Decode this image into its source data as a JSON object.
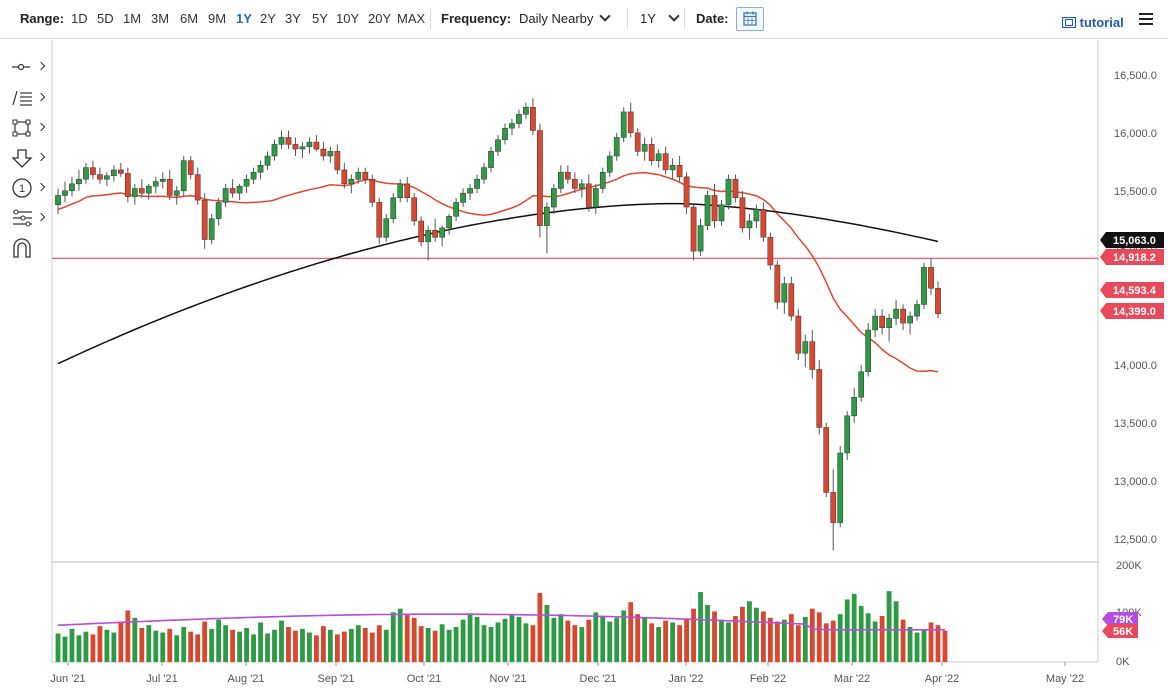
{
  "toolbar": {
    "range_label": "Range:",
    "ranges": [
      "1D",
      "5D",
      "1M",
      "3M",
      "6M",
      "9M",
      "1Y",
      "2Y",
      "3Y",
      "5Y",
      "10Y",
      "20Y",
      "MAX"
    ],
    "active_range": "1Y",
    "frequency_label": "Frequency:",
    "frequency_value": "Daily Nearby",
    "period_value": "1Y",
    "date_label": "Date:",
    "tutorial_label": "tutorial",
    "accent_color": "#1f6fb5"
  },
  "drawing_tools": [
    "crosshair-tool-icon",
    "trend-lines-icon",
    "shapes-icon",
    "arrow-icon",
    "annotation-icon",
    "fibonacci-icon",
    "magnet-icon"
  ],
  "annotation_number": "1",
  "chart_data": {
    "type": "candlestick",
    "x_tick_labels": [
      "Jun '21",
      "Jul '21",
      "Aug '21",
      "Sep '21",
      "Oct '21",
      "Nov '21",
      "Dec '21",
      "Jan '22",
      "Feb '22",
      "Mar '22",
      "Apr '22",
      "May '22"
    ],
    "y_tick_labels": [
      "16,500.0",
      "16,000.0",
      "15,500.0",
      "15,000.0",
      "14,500.0",
      "14,000.0",
      "13,500.0",
      "13,000.0",
      "12,500.0"
    ],
    "y_range": [
      12300,
      16800
    ],
    "horizontal_line": {
      "value": 14918.2,
      "label": "14,918.2",
      "color": "#e8495b"
    },
    "price_tags": [
      {
        "label": "15,063.0",
        "value": 15063.0,
        "color": "#111111"
      },
      {
        "label": "14,918.2",
        "value": 14918.2,
        "color": "#e8495b"
      },
      {
        "label": "14,593.4",
        "value": 14593.4,
        "color": "#e8495b"
      },
      {
        "label": "14,399.0",
        "value": 14399.0,
        "color": "#e8495b"
      }
    ],
    "ma_50_color": "#e8442c",
    "ma_200_color": "#111111",
    "up_color": "#2e9a44",
    "down_color": "#d9472f",
    "candles": [
      [
        15380,
        15520,
        15300,
        15460
      ],
      [
        15460,
        15580,
        15400,
        15500
      ],
      [
        15500,
        15620,
        15450,
        15560
      ],
      [
        15560,
        15680,
        15500,
        15600
      ],
      [
        15600,
        15740,
        15560,
        15700
      ],
      [
        15700,
        15760,
        15600,
        15640
      ],
      [
        15640,
        15700,
        15560,
        15600
      ],
      [
        15600,
        15660,
        15540,
        15630
      ],
      [
        15630,
        15720,
        15580,
        15680
      ],
      [
        15680,
        15740,
        15620,
        15650
      ],
      [
        15650,
        15700,
        15400,
        15450
      ],
      [
        15450,
        15560,
        15380,
        15520
      ],
      [
        15520,
        15600,
        15440,
        15480
      ],
      [
        15480,
        15560,
        15420,
        15540
      ],
      [
        15540,
        15620,
        15480,
        15580
      ],
      [
        15580,
        15660,
        15520,
        15600
      ],
      [
        15600,
        15680,
        15420,
        15460
      ],
      [
        15460,
        15540,
        15380,
        15500
      ],
      [
        15500,
        15800,
        15460,
        15760
      ],
      [
        15760,
        15800,
        15600,
        15640
      ],
      [
        15640,
        15700,
        15380,
        15420
      ],
      [
        15420,
        15480,
        15000,
        15080
      ],
      [
        15080,
        15300,
        15040,
        15260
      ],
      [
        15260,
        15440,
        15200,
        15400
      ],
      [
        15400,
        15560,
        15360,
        15520
      ],
      [
        15520,
        15600,
        15440,
        15480
      ],
      [
        15480,
        15560,
        15420,
        15540
      ],
      [
        15540,
        15640,
        15480,
        15600
      ],
      [
        15600,
        15700,
        15560,
        15660
      ],
      [
        15660,
        15760,
        15600,
        15720
      ],
      [
        15720,
        15840,
        15680,
        15800
      ],
      [
        15800,
        15940,
        15760,
        15900
      ],
      [
        15900,
        16020,
        15860,
        15960
      ],
      [
        15960,
        16020,
        15860,
        15900
      ],
      [
        15900,
        15960,
        15800,
        15860
      ],
      [
        15860,
        15920,
        15780,
        15880
      ],
      [
        15880,
        15960,
        15820,
        15920
      ],
      [
        15920,
        15980,
        15840,
        15860
      ],
      [
        15860,
        15920,
        15760,
        15800
      ],
      [
        15800,
        15880,
        15740,
        15840
      ],
      [
        15840,
        15900,
        15640,
        15680
      ],
      [
        15680,
        15740,
        15520,
        15560
      ],
      [
        15560,
        15640,
        15480,
        15600
      ],
      [
        15600,
        15700,
        15560,
        15660
      ],
      [
        15660,
        15700,
        15560,
        15600
      ],
      [
        15600,
        15640,
        15360,
        15400
      ],
      [
        15400,
        15440,
        15040,
        15100
      ],
      [
        15100,
        15300,
        15060,
        15260
      ],
      [
        15260,
        15480,
        15220,
        15440
      ],
      [
        15440,
        15600,
        15400,
        15560
      ],
      [
        15560,
        15620,
        15400,
        15440
      ],
      [
        15440,
        15480,
        15200,
        15240
      ],
      [
        15240,
        15280,
        15020,
        15060
      ],
      [
        15060,
        15200,
        14900,
        15160
      ],
      [
        15160,
        15260,
        15060,
        15100
      ],
      [
        15100,
        15200,
        15020,
        15180
      ],
      [
        15180,
        15300,
        15120,
        15280
      ],
      [
        15280,
        15440,
        15240,
        15400
      ],
      [
        15400,
        15520,
        15360,
        15480
      ],
      [
        15480,
        15560,
        15420,
        15520
      ],
      [
        15520,
        15640,
        15480,
        15600
      ],
      [
        15600,
        15740,
        15560,
        15700
      ],
      [
        15700,
        15880,
        15660,
        15840
      ],
      [
        15840,
        15980,
        15800,
        15940
      ],
      [
        15940,
        16080,
        15900,
        16040
      ],
      [
        16040,
        16120,
        15980,
        16080
      ],
      [
        16080,
        16200,
        16040,
        16160
      ],
      [
        16160,
        16260,
        16120,
        16220
      ],
      [
        16220,
        16300,
        15980,
        16020
      ],
      [
        16020,
        16080,
        15100,
        15200
      ],
      [
        15200,
        15400,
        14960,
        15360
      ],
      [
        15360,
        15560,
        15300,
        15520
      ],
      [
        15520,
        15720,
        15480,
        15660
      ],
      [
        15660,
        15720,
        15560,
        15600
      ],
      [
        15600,
        15660,
        15480,
        15520
      ],
      [
        15520,
        15600,
        15440,
        15560
      ],
      [
        15560,
        15640,
        15320,
        15360
      ],
      [
        15360,
        15560,
        15300,
        15520
      ],
      [
        15520,
        15700,
        15480,
        15660
      ],
      [
        15660,
        15840,
        15620,
        15800
      ],
      [
        15800,
        16000,
        15760,
        15960
      ],
      [
        15960,
        16220,
        15920,
        16180
      ],
      [
        16180,
        16260,
        15960,
        16000
      ],
      [
        16000,
        16040,
        15800,
        15840
      ],
      [
        15840,
        15960,
        15760,
        15900
      ],
      [
        15900,
        15960,
        15720,
        15760
      ],
      [
        15760,
        15860,
        15700,
        15820
      ],
      [
        15820,
        15880,
        15640,
        15680
      ],
      [
        15680,
        15780,
        15600,
        15720
      ],
      [
        15720,
        15800,
        15580,
        15620
      ],
      [
        15620,
        15660,
        15300,
        15360
      ],
      [
        15360,
        15380,
        14900,
        14980
      ],
      [
        14980,
        15260,
        14940,
        15200
      ],
      [
        15200,
        15500,
        15160,
        15460
      ],
      [
        15460,
        15560,
        15180,
        15240
      ],
      [
        15240,
        15420,
        15200,
        15380
      ],
      [
        15380,
        15640,
        15340,
        15600
      ],
      [
        15600,
        15640,
        15400,
        15440
      ],
      [
        15440,
        15500,
        15140,
        15180
      ],
      [
        15180,
        15300,
        15080,
        15240
      ],
      [
        15240,
        15380,
        15180,
        15340
      ],
      [
        15340,
        15400,
        15060,
        15100
      ],
      [
        15100,
        15140,
        14820,
        14860
      ],
      [
        14860,
        14900,
        14480,
        14540
      ],
      [
        14540,
        14760,
        14440,
        14700
      ],
      [
        14700,
        14760,
        14380,
        14420
      ],
      [
        14420,
        14480,
        14040,
        14100
      ],
      [
        14100,
        14260,
        13980,
        14200
      ],
      [
        14200,
        14300,
        13880,
        13960
      ],
      [
        13960,
        14040,
        13400,
        13460
      ],
      [
        13460,
        13500,
        12860,
        12900
      ],
      [
        12900,
        13100,
        12400,
        12640
      ],
      [
        12640,
        13300,
        12600,
        13240
      ],
      [
        13240,
        13600,
        13180,
        13560
      ],
      [
        13560,
        13800,
        13500,
        13720
      ],
      [
        13720,
        14000,
        13680,
        13940
      ],
      [
        13940,
        14360,
        13900,
        14300
      ],
      [
        14300,
        14480,
        14240,
        14420
      ],
      [
        14420,
        14480,
        14260,
        14320
      ],
      [
        14320,
        14440,
        14200,
        14400
      ],
      [
        14400,
        14560,
        14340,
        14480
      ],
      [
        14480,
        14520,
        14300,
        14360
      ],
      [
        14360,
        14460,
        14260,
        14420
      ],
      [
        14420,
        14560,
        14380,
        14520
      ],
      [
        14520,
        14880,
        14480,
        14840
      ],
      [
        14840,
        14920,
        14600,
        14660
      ],
      [
        14660,
        14720,
        14400,
        14440
      ]
    ],
    "volume_axis_labels": [
      "200K",
      "100K",
      "0K"
    ],
    "volume_range": [
      0,
      200000
    ],
    "volume_tags": [
      {
        "label": "79K",
        "value": 79000,
        "color": "#b44de0"
      },
      {
        "label": "56K",
        "value": 56000,
        "color": "#e8495b"
      }
    ],
    "volume_ma_color": "#b44de0",
    "volumes": [
      62,
      55,
      72,
      58,
      66,
      60,
      78,
      70,
      64,
      88,
      112,
      96,
      74,
      80,
      68,
      64,
      72,
      58,
      76,
      66,
      60,
      88,
      72,
      92,
      80,
      70,
      66,
      74,
      60,
      86,
      62,
      70,
      90,
      76,
      68,
      72,
      64,
      58,
      78,
      70,
      60,
      66,
      72,
      80,
      74,
      64,
      80,
      70,
      108,
      116,
      102,
      96,
      78,
      74,
      68,
      82,
      70,
      76,
      92,
      106,
      98,
      80,
      76,
      86,
      94,
      104,
      98,
      84,
      80,
      150,
      124,
      96,
      104,
      90,
      80,
      76,
      92,
      108,
      100,
      88,
      96,
      112,
      130,
      104,
      96,
      84,
      76,
      90,
      86,
      80,
      94,
      116,
      152,
      124,
      110,
      92,
      86,
      100,
      120,
      132,
      118,
      110,
      96,
      88,
      92,
      104,
      80,
      98,
      116,
      108,
      84,
      90,
      104,
      136,
      148,
      122,
      106,
      88,
      100,
      154,
      132,
      92,
      76,
      64,
      70,
      86,
      80,
      68
    ]
  }
}
